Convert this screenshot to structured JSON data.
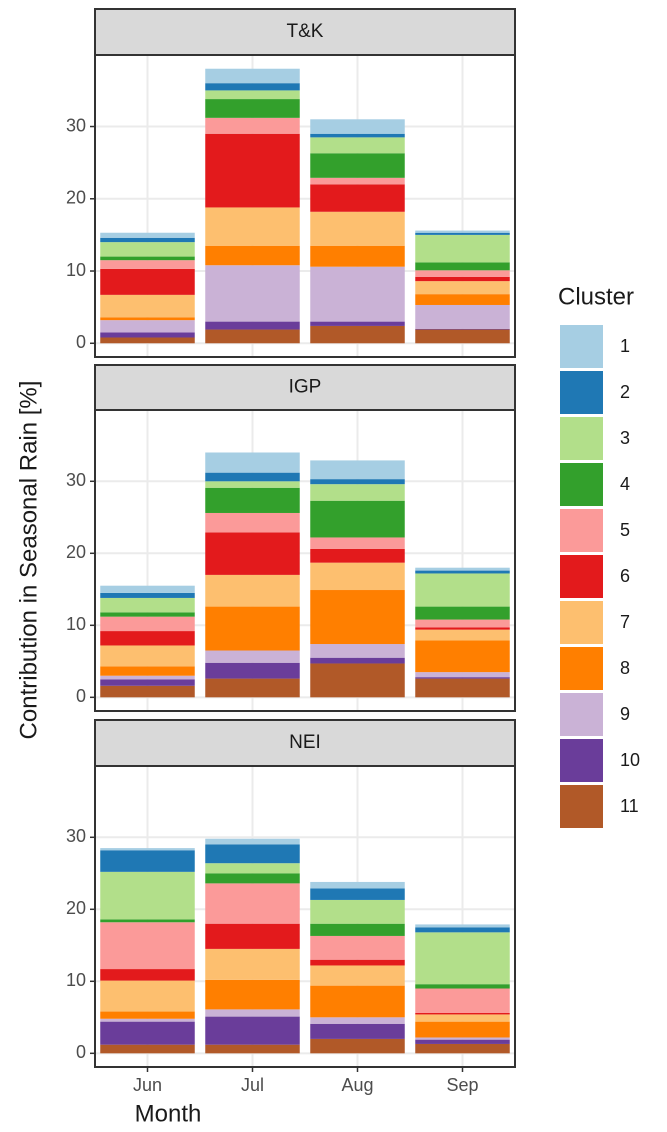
{
  "chart_data": {
    "type": "bar",
    "stacked": true,
    "x_label": "Month",
    "y_label": "Contribution in Seasonal Rain [%]",
    "legend_title": "Cluster",
    "legend_position": "right",
    "grid": true,
    "facets": [
      "T&K",
      "IGP",
      "NEI"
    ],
    "categories": [
      "Jun",
      "Jul",
      "Aug",
      "Sep"
    ],
    "ylim": [
      -1.9,
      39.9
    ],
    "yticks": [
      0,
      10,
      20,
      30
    ],
    "series": [
      {
        "name": "1",
        "color": "#a6cee3",
        "values": [
          [
            0.7,
            2.0,
            2.0,
            0.3
          ],
          [
            1.0,
            2.8,
            2.6,
            0.4
          ],
          [
            0.3,
            0.8,
            0.9,
            0.4
          ]
        ]
      },
      {
        "name": "2",
        "color": "#1f78b4",
        "values": [
          [
            0.6,
            1.0,
            0.5,
            0.3
          ],
          [
            0.7,
            1.2,
            0.7,
            0.4
          ],
          [
            3.0,
            2.6,
            1.6,
            0.7
          ]
        ]
      },
      {
        "name": "3",
        "color": "#b2df8a",
        "values": [
          [
            2.0,
            1.2,
            2.2,
            3.8
          ],
          [
            2.0,
            0.9,
            2.3,
            4.6
          ],
          [
            6.6,
            1.4,
            3.3,
            7.2
          ]
        ]
      },
      {
        "name": "4",
        "color": "#33a02c",
        "values": [
          [
            0.5,
            2.6,
            3.4,
            1.1
          ],
          [
            0.6,
            3.5,
            5.1,
            1.8
          ],
          [
            0.4,
            1.4,
            1.7,
            0.6
          ]
        ]
      },
      {
        "name": "5",
        "color": "#fb9a99",
        "values": [
          [
            1.2,
            2.2,
            0.9,
            0.9
          ],
          [
            2.0,
            2.7,
            1.6,
            1.1
          ],
          [
            6.5,
            5.6,
            3.3,
            3.4
          ]
        ]
      },
      {
        "name": "6",
        "color": "#e31a1c",
        "values": [
          [
            3.6,
            10.2,
            3.8,
            0.6
          ],
          [
            2.0,
            5.9,
            1.9,
            0.3
          ],
          [
            1.6,
            3.5,
            0.8,
            0.2
          ]
        ]
      },
      {
        "name": "7",
        "color": "#fdbf6f",
        "values": [
          [
            3.1,
            5.3,
            4.7,
            1.8
          ],
          [
            2.9,
            4.4,
            3.8,
            1.5
          ],
          [
            4.3,
            4.3,
            2.8,
            1.0
          ]
        ]
      },
      {
        "name": "8",
        "color": "#ff7f00",
        "values": [
          [
            0.4,
            2.7,
            2.9,
            1.5
          ],
          [
            1.3,
            6.1,
            7.5,
            4.4
          ],
          [
            1.0,
            4.1,
            4.4,
            2.2
          ]
        ]
      },
      {
        "name": "9",
        "color": "#cab2d6",
        "values": [
          [
            1.7,
            7.8,
            7.6,
            3.3
          ],
          [
            0.5,
            1.7,
            1.9,
            0.7
          ],
          [
            0.4,
            1.0,
            0.9,
            0.3
          ]
        ]
      },
      {
        "name": "10",
        "color": "#6a3d9a",
        "values": [
          [
            0.7,
            1.1,
            0.6,
            0.1
          ],
          [
            0.9,
            2.2,
            0.8,
            0.2
          ],
          [
            3.2,
            3.9,
            2.1,
            0.6
          ]
        ]
      },
      {
        "name": "11",
        "color": "#b15928",
        "values": [
          [
            0.8,
            1.9,
            2.4,
            1.9
          ],
          [
            1.6,
            2.6,
            4.7,
            2.6
          ],
          [
            1.2,
            1.2,
            2.0,
            1.3
          ]
        ]
      }
    ]
  }
}
